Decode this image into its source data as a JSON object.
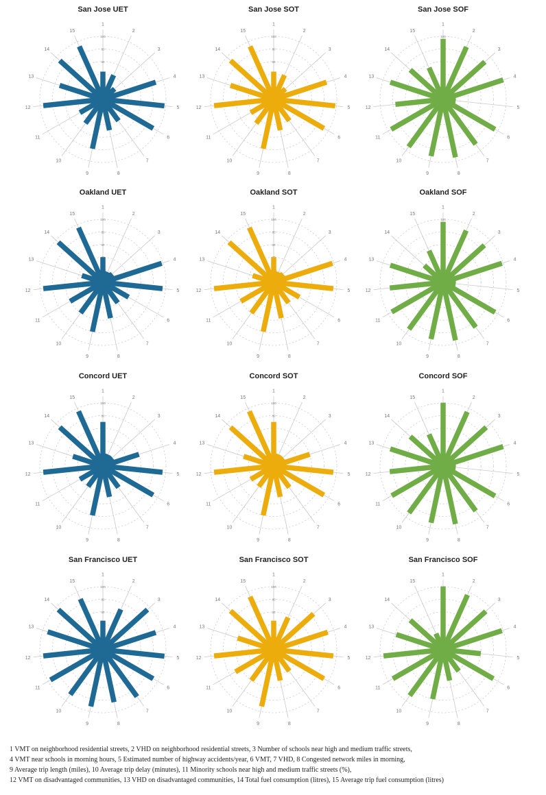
{
  "colors": {
    "UET": "#1f6995",
    "SOT": "#ecac0c",
    "SOF": "#70ad47"
  },
  "axis_labels": [
    "1",
    "2",
    "3",
    "4",
    "5",
    "6",
    "7",
    "8",
    "9",
    "10",
    "11",
    "12",
    "13",
    "14",
    "15"
  ],
  "ring_labels": [
    "20",
    "40",
    "60",
    "80",
    "100"
  ],
  "chart_data": [
    {
      "type": "radial-bar",
      "title": "San Jose UET",
      "group": "UET",
      "values": [
        44,
        42,
        25,
        88,
        98,
        92,
        42,
        50,
        80,
        47,
        42,
        95,
        72,
        92,
        92
      ],
      "rlim": [
        0,
        100
      ]
    },
    {
      "type": "radial-bar",
      "title": "San Jose SOT",
      "group": "SOT",
      "values": [
        44,
        42,
        25,
        88,
        98,
        92,
        42,
        50,
        80,
        47,
        42,
        95,
        72,
        92,
        92
      ],
      "rlim": [
        0,
        100
      ]
    },
    {
      "type": "radial-bar",
      "title": "San Jose SOF",
      "group": "SOF",
      "values": [
        96,
        91,
        89,
        100,
        20,
        95,
        88,
        94,
        92,
        93,
        95,
        76,
        88,
        70,
        55
      ],
      "rlim": [
        0,
        100
      ]
    },
    {
      "type": "radial-bar",
      "title": "Oakland UET",
      "group": "UET",
      "values": [
        40,
        18,
        20,
        98,
        95,
        47,
        40,
        58,
        80,
        60,
        60,
        95,
        35,
        95,
        95
      ],
      "rlim": [
        0,
        100
      ]
    },
    {
      "type": "radial-bar",
      "title": "Oakland SOT",
      "group": "SOT",
      "values": [
        40,
        18,
        20,
        98,
        95,
        47,
        40,
        58,
        80,
        60,
        60,
        95,
        35,
        95,
        95
      ],
      "rlim": [
        0,
        100
      ]
    },
    {
      "type": "radial-bar",
      "title": "Oakland SOF",
      "group": "SOF",
      "values": [
        96,
        90,
        88,
        98,
        20,
        95,
        88,
        94,
        92,
        92,
        94,
        85,
        88,
        40,
        55
      ],
      "rlim": [
        0,
        100
      ]
    },
    {
      "type": "radial-bar",
      "title": "Concord UET",
      "group": "UET",
      "values": [
        70,
        20,
        20,
        60,
        95,
        92,
        42,
        50,
        80,
        40,
        42,
        95,
        50,
        92,
        95
      ],
      "rlim": [
        0,
        100
      ]
    },
    {
      "type": "radial-bar",
      "title": "Concord SOT",
      "group": "SOT",
      "values": [
        70,
        20,
        20,
        60,
        95,
        92,
        42,
        50,
        80,
        40,
        42,
        95,
        50,
        92,
        95
      ],
      "rlim": [
        0,
        100
      ]
    },
    {
      "type": "radial-bar",
      "title": "Concord SOF",
      "group": "SOF",
      "values": [
        100,
        94,
        92,
        100,
        20,
        95,
        88,
        94,
        92,
        92,
        94,
        85,
        88,
        70,
        55
      ],
      "rlim": [
        0,
        100
      ]
    },
    {
      "type": "radial-bar",
      "title": "San Francisco UET",
      "group": "UET",
      "values": [
        46,
        70,
        95,
        88,
        98,
        92,
        92,
        85,
        92,
        88,
        96,
        95,
        92,
        95,
        88
      ],
      "rlim": [
        0,
        100
      ]
    },
    {
      "type": "radial-bar",
      "title": "San Francisco SOT",
      "group": "SOT",
      "values": [
        46,
        56,
        85,
        90,
        95,
        92,
        42,
        50,
        92,
        60,
        70,
        95,
        60,
        92,
        92
      ],
      "rlim": [
        0,
        100
      ]
    },
    {
      "type": "radial-bar",
      "title": "San Francisco SOF",
      "group": "SOF",
      "values": [
        100,
        95,
        91,
        98,
        60,
        92,
        42,
        50,
        80,
        90,
        92,
        95,
        78,
        70,
        28
      ],
      "rlim": [
        0,
        100
      ]
    }
  ],
  "footnote_lines": [
    "1 VMT on neighborhood residential streets, 2 VHD on neighborhood residential streets, 3 Number of schools near high and medium traffic streets,",
    "4 VMT near schools in morning hours, 5 Estimated number of  highway accidents/year, 6 VMT, 7 VHD, 8 Congested network miles in morning,",
    " 9 Average trip length (miles), 10 Average trip delay (minutes), 11 Minority schools near high and medium traffic streets (%),",
    "12 VMT on disadvantaged communities, 13 VHD on disadvantaged communities, 14 Total fuel consumption (litres),  15 Average trip fuel consumption (litres)"
  ]
}
